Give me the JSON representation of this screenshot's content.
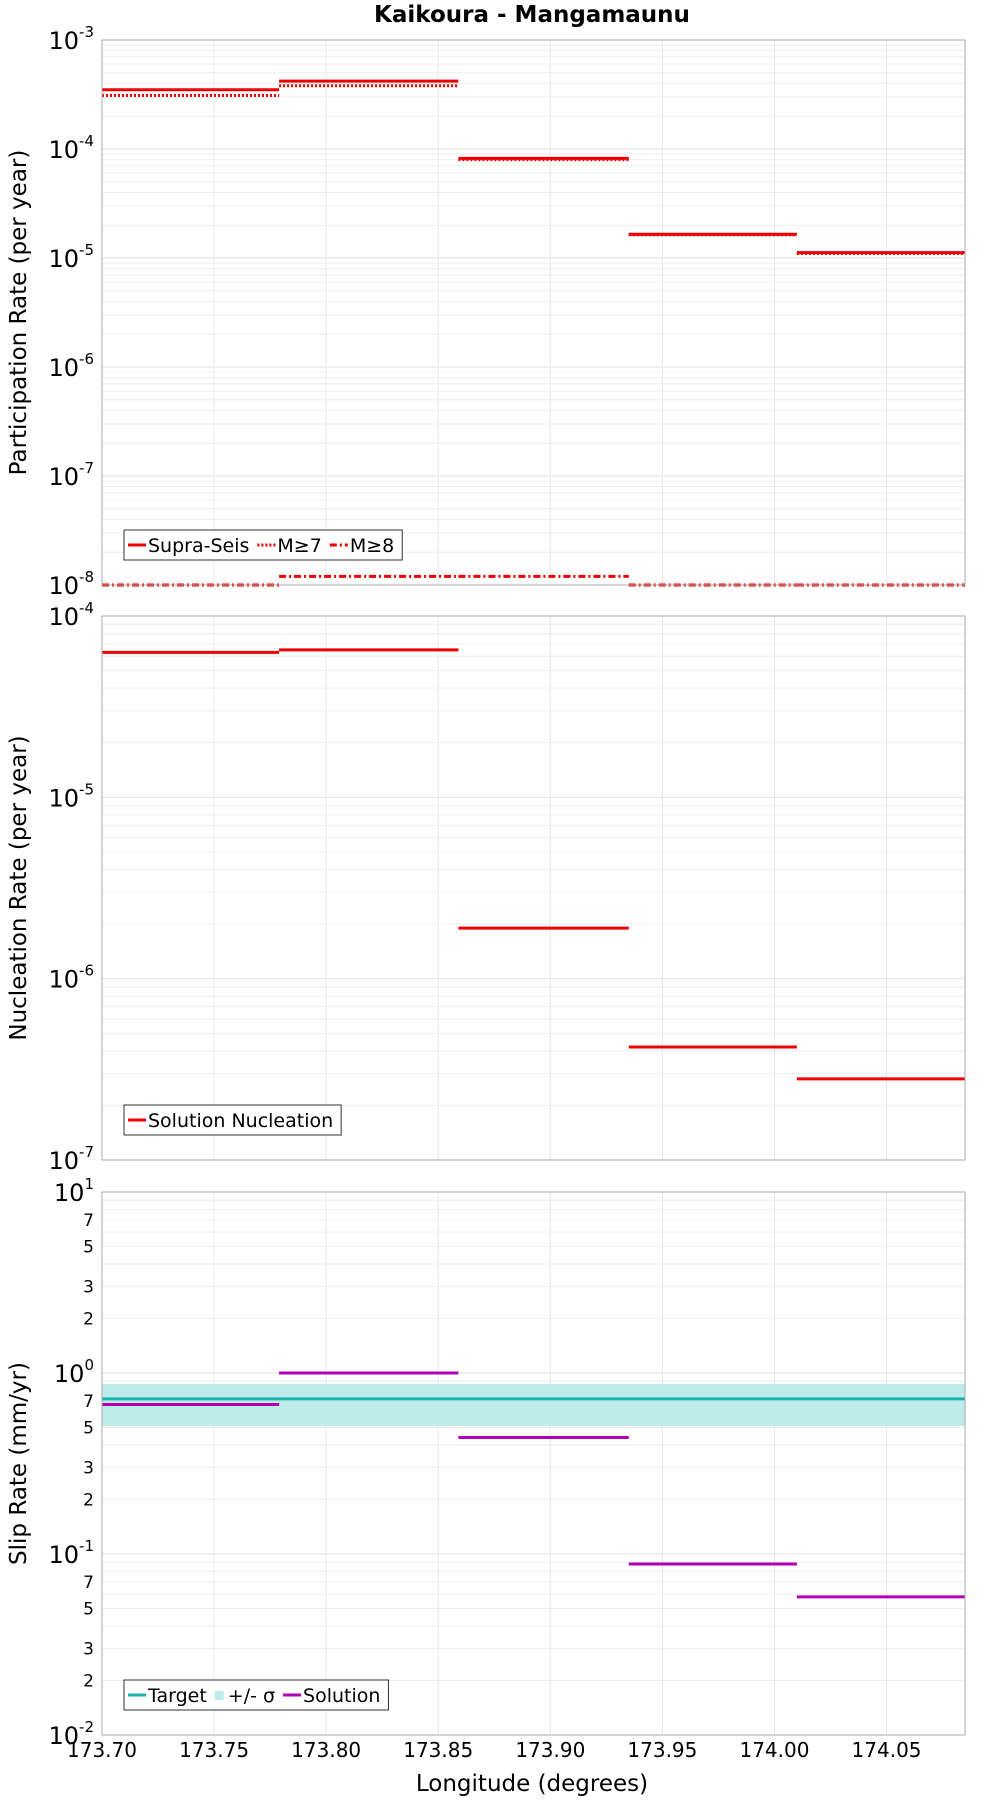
{
  "chart_data": [
    {
      "type": "line",
      "title": "Kaikoura - Mangamaunu",
      "ylabel": "Participation Rate (per year)",
      "xlabel": "",
      "yscale": "log",
      "xlim": [
        173.7,
        174.085
      ],
      "ylim": [
        1e-08,
        0.001
      ],
      "grid": true,
      "legend_position": "bottom-left",
      "segment_bounds": [
        173.7,
        173.779,
        173.859,
        173.935,
        174.01,
        174.085
      ],
      "series": [
        {
          "name": "Supra-Seis",
          "style": "solid",
          "color": "#ee0000",
          "values": [
            0.00035,
            0.00042,
            8.2e-05,
            1.65e-05,
            1.12e-05
          ]
        },
        {
          "name": "M≥7",
          "style": "dotted",
          "color": "#ee0000",
          "values": [
            0.00031,
            0.00038,
            8e-05,
            1.63e-05,
            1.1e-05
          ]
        },
        {
          "name": "M≥8",
          "style": "dashdot",
          "color": "#ee0000",
          "values": [
            1e-08,
            1.2e-08,
            1.2e-08,
            1e-08,
            1e-08
          ]
        }
      ],
      "y_tick_labels": [
        {
          "base": "10",
          "exp": "-3",
          "value": 0.001
        },
        {
          "base": "10",
          "exp": "-4",
          "value": 0.0001
        },
        {
          "base": "10",
          "exp": "-5",
          "value": 1e-05
        },
        {
          "base": "10",
          "exp": "-6",
          "value": 1e-06
        },
        {
          "base": "10",
          "exp": "-7",
          "value": 1e-07
        },
        {
          "base": "10",
          "exp": "-8",
          "value": 1e-08
        }
      ]
    },
    {
      "type": "line",
      "title": "",
      "ylabel": "Nucleation Rate (per year)",
      "xlabel": "",
      "yscale": "log",
      "xlim": [
        173.7,
        174.085
      ],
      "ylim": [
        1e-07,
        0.0001
      ],
      "grid": true,
      "legend_position": "bottom-left",
      "segment_bounds": [
        173.7,
        173.779,
        173.859,
        173.935,
        174.01,
        174.085
      ],
      "series": [
        {
          "name": "Solution Nucleation",
          "style": "solid",
          "color": "#ee0000",
          "values": [
            6.3e-05,
            6.5e-05,
            1.9e-06,
            4.2e-07,
            2.8e-07
          ]
        }
      ],
      "y_tick_labels": [
        {
          "base": "10",
          "exp": "-4",
          "value": 0.0001
        },
        {
          "base": "10",
          "exp": "-5",
          "value": 1e-05
        },
        {
          "base": "10",
          "exp": "-6",
          "value": 1e-06
        },
        {
          "base": "10",
          "exp": "-7",
          "value": 1e-07
        }
      ]
    },
    {
      "type": "line",
      "title": "",
      "ylabel": "Slip Rate (mm/yr)",
      "xlabel": "Longitude (degrees)",
      "yscale": "log",
      "xlim": [
        173.7,
        174.085
      ],
      "ylim": [
        0.01,
        10
      ],
      "grid": true,
      "legend_position": "bottom-left",
      "segment_bounds": [
        173.7,
        173.779,
        173.859,
        173.935,
        174.01,
        174.085
      ],
      "target": {
        "name": "Target",
        "color": "#1cb2ae",
        "value": 0.72
      },
      "sigma_band": {
        "name": "+/- σ",
        "color": "#bfeceb",
        "low": 0.51,
        "high": 0.87
      },
      "series": [
        {
          "name": "Solution",
          "style": "solid",
          "color": "#b200b2",
          "values": [
            0.67,
            1.0,
            0.44,
            0.088,
            0.058
          ]
        }
      ],
      "y_tick_labels": [
        {
          "base": "10",
          "exp": "1",
          "value": 10
        },
        {
          "base": "10",
          "exp": "0",
          "value": 1
        },
        {
          "base": "10",
          "exp": "-1",
          "value": 0.1
        },
        {
          "base": "10",
          "exp": "-2",
          "value": 0.01
        }
      ],
      "y_minor_labels": [
        {
          "label": "7",
          "value": 7
        },
        {
          "label": "5",
          "value": 5
        },
        {
          "label": "3",
          "value": 3
        },
        {
          "label": "2",
          "value": 2
        },
        {
          "label": "7",
          "value": 0.7
        },
        {
          "label": "5",
          "value": 0.5
        },
        {
          "label": "3",
          "value": 0.3
        },
        {
          "label": "2",
          "value": 0.2
        },
        {
          "label": "7",
          "value": 0.07
        },
        {
          "label": "5",
          "value": 0.05
        },
        {
          "label": "3",
          "value": 0.03
        },
        {
          "label": "2",
          "value": 0.02
        }
      ],
      "x_tick_labels": [
        {
          "label": "173.70",
          "value": 173.7
        },
        {
          "label": "173.75",
          "value": 173.75
        },
        {
          "label": "173.80",
          "value": 173.8
        },
        {
          "label": "173.85",
          "value": 173.85
        },
        {
          "label": "173.90",
          "value": 173.9
        },
        {
          "label": "173.95",
          "value": 173.95
        },
        {
          "label": "174.00",
          "value": 174.0
        },
        {
          "label": "174.05",
          "value": 174.05
        }
      ]
    }
  ]
}
